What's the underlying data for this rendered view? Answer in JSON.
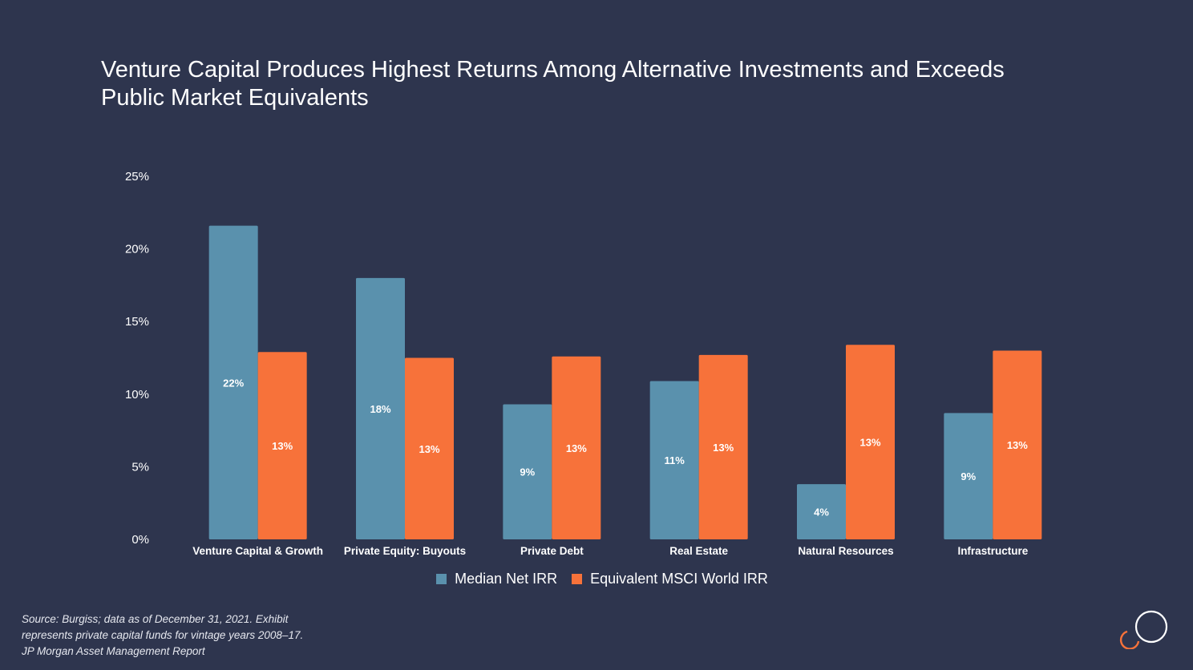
{
  "header": {
    "title_line1": "Venture Capital Produces Highest Returns Among Alternative Investments and Exceeds",
    "title_line2": "Public Market Equivalents"
  },
  "chart_data": {
    "type": "bar",
    "title": "",
    "xlabel": "",
    "ylabel": "",
    "ylim": [
      0,
      25
    ],
    "yticks": [
      "0%",
      "5%",
      "10%",
      "15%",
      "20%",
      "25%"
    ],
    "grid": false,
    "legend_position": "bottom",
    "categories": [
      "Venture Capital & Growth",
      "Private Equity: Buyouts",
      "Private Debt",
      "Real Estate",
      "Natural Resources",
      "Infrastructure"
    ],
    "series": [
      {
        "name": "Median Net IRR",
        "color": "#5a91ad",
        "values": [
          21.6,
          18.0,
          9.3,
          10.9,
          3.8,
          8.7
        ],
        "labels": [
          "22%",
          "18%",
          "9%",
          "11%",
          "4%",
          "9%"
        ]
      },
      {
        "name": "Equivalent MSCI World IRR",
        "color": "#f7723a",
        "values": [
          12.9,
          12.5,
          12.6,
          12.7,
          13.4,
          13.0
        ],
        "labels": [
          "13%",
          "13%",
          "13%",
          "13%",
          "13%",
          "13%"
        ]
      }
    ]
  },
  "legend": {
    "items": [
      {
        "label": "Median Net IRR",
        "color": "#5a91ad"
      },
      {
        "label": "Equivalent MSCI World IRR",
        "color": "#f7723a"
      }
    ]
  },
  "footer": {
    "source_line1": "Source: Burgiss; data as of December 31, 2021. Exhibit",
    "source_line2": "represents private capital funds for vintage years 2008–17.",
    "source_line3": "JP Morgan Asset Management Report",
    "logo_icon": "interlocking-rings-logo"
  },
  "colors": {
    "background": "#2e354e",
    "series_blue": "#5a91ad",
    "series_orange": "#f7723a"
  }
}
